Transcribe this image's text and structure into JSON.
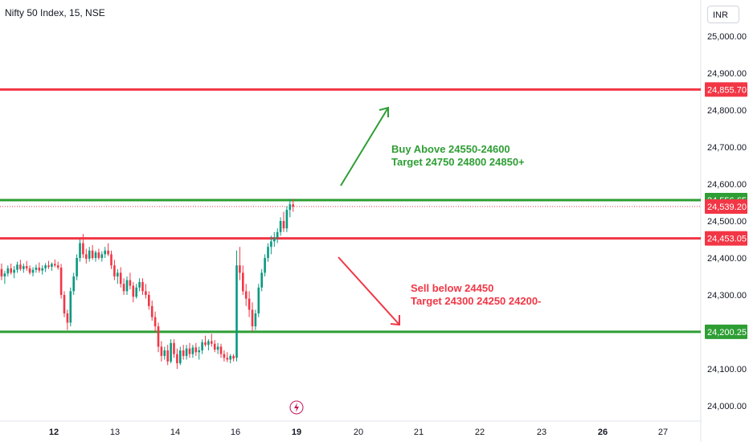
{
  "header": {
    "title": "Nifty 50 Index, 15, NSE",
    "currency": "INR"
  },
  "colors": {
    "up": "#089981",
    "down": "#f23645",
    "green_line": "#2e9e34",
    "red_line": "#f23645",
    "axis_text": "#131722"
  },
  "annotations": {
    "buy_line1": "Buy Above 24550-24600",
    "buy_line2": "Target 24750 24800 24850+",
    "sell_line1": "Sell below 24450",
    "sell_line2": "Target 24300 24250 24200-"
  },
  "chart_data": {
    "type": "candlestick",
    "ylim": [
      23985,
      25040
    ],
    "y_ticks": [
      "25,000.00",
      "24,900.00",
      "24,800.00",
      "24,700.00",
      "24,600.00",
      "24,500.00",
      "24,400.00",
      "24,300.00",
      "24,200.00",
      "24,100.00",
      "24,000.00"
    ],
    "x_ticks": [
      "12",
      "13",
      "14",
      "16",
      "19",
      "20",
      "21",
      "22",
      "23",
      "26",
      "27"
    ],
    "horizontal_levels": [
      {
        "value": 24855.7,
        "label": "24,855.70",
        "color": "red"
      },
      {
        "value": 24556.65,
        "label": "24,556.65",
        "color": "green"
      },
      {
        "value": 24539.2,
        "label": "24,539.20",
        "color": "red",
        "style": "dotted"
      },
      {
        "value": 24453.05,
        "label": "24,453.05",
        "color": "red"
      },
      {
        "value": 24200.25,
        "label": "24,200.25",
        "color": "green"
      }
    ],
    "series": [
      {
        "candles": [
          [
            24370,
            24385,
            24340,
            24350
          ],
          [
            24350,
            24365,
            24330,
            24358
          ],
          [
            24358,
            24380,
            24350,
            24372
          ],
          [
            24372,
            24385,
            24355,
            24360
          ],
          [
            24360,
            24378,
            24345,
            24368
          ],
          [
            24368,
            24390,
            24360,
            24382
          ],
          [
            24382,
            24395,
            24365,
            24370
          ],
          [
            24370,
            24385,
            24360,
            24378
          ],
          [
            24378,
            24392,
            24365,
            24372
          ],
          [
            24372,
            24380,
            24355,
            24360
          ],
          [
            24360,
            24375,
            24350,
            24368
          ],
          [
            24368,
            24382,
            24360,
            24374
          ],
          [
            24374,
            24388,
            24360,
            24366
          ],
          [
            24366,
            24380,
            24355,
            24372
          ],
          [
            24372,
            24386,
            24362,
            24380
          ],
          [
            24380,
            24392,
            24370,
            24376
          ],
          [
            24376,
            24388,
            24365,
            24384
          ],
          [
            24384,
            24396,
            24375,
            24380
          ],
          [
            24380,
            24390,
            24368,
            24374
          ],
          [
            24374,
            24384,
            24290,
            24300
          ],
          [
            24300,
            24310,
            24240,
            24250
          ],
          [
            24250,
            24260,
            24205,
            24225
          ],
          [
            24225,
            24320,
            24215,
            24310
          ],
          [
            24310,
            24360,
            24300,
            24350
          ],
          [
            24350,
            24410,
            24340,
            24400
          ],
          [
            24400,
            24450,
            24390,
            24440
          ],
          [
            24440,
            24465,
            24400,
            24410
          ],
          [
            24410,
            24425,
            24385,
            24398
          ],
          [
            24398,
            24430,
            24390,
            24420
          ],
          [
            24420,
            24435,
            24395,
            24400
          ],
          [
            24400,
            24420,
            24390,
            24415
          ],
          [
            24415,
            24425,
            24395,
            24400
          ],
          [
            24400,
            24418,
            24390,
            24410
          ],
          [
            24410,
            24430,
            24400,
            24420
          ],
          [
            24420,
            24440,
            24405,
            24410
          ],
          [
            24410,
            24420,
            24370,
            24380
          ],
          [
            24380,
            24395,
            24340,
            24350
          ],
          [
            24350,
            24370,
            24330,
            24360
          ],
          [
            24360,
            24375,
            24320,
            24330
          ],
          [
            24330,
            24345,
            24300,
            24310
          ],
          [
            24310,
            24350,
            24300,
            24340
          ],
          [
            24340,
            24360,
            24315,
            24325
          ],
          [
            24325,
            24335,
            24280,
            24295
          ],
          [
            24295,
            24330,
            24290,
            24320
          ],
          [
            24320,
            24345,
            24310,
            24335
          ],
          [
            24335,
            24345,
            24300,
            24310
          ],
          [
            24310,
            24330,
            24290,
            24300
          ],
          [
            24300,
            24310,
            24260,
            24270
          ],
          [
            24270,
            24285,
            24230,
            24240
          ],
          [
            24240,
            24255,
            24200,
            24215
          ],
          [
            24215,
            24225,
            24145,
            24160
          ],
          [
            24160,
            24175,
            24120,
            24135
          ],
          [
            24135,
            24160,
            24125,
            24150
          ],
          [
            24150,
            24165,
            24110,
            24120
          ],
          [
            24120,
            24180,
            24115,
            24170
          ],
          [
            24170,
            24180,
            24130,
            24140
          ],
          [
            24140,
            24155,
            24100,
            24115
          ],
          [
            24115,
            24160,
            24110,
            24150
          ],
          [
            24150,
            24165,
            24125,
            24135
          ],
          [
            24135,
            24165,
            24125,
            24155
          ],
          [
            24155,
            24170,
            24130,
            24140
          ],
          [
            24140,
            24165,
            24130,
            24158
          ],
          [
            24158,
            24170,
            24135,
            24145
          ],
          [
            24145,
            24160,
            24125,
            24150
          ],
          [
            24150,
            24180,
            24140,
            24172
          ],
          [
            24172,
            24190,
            24160,
            24165
          ],
          [
            24165,
            24180,
            24150,
            24175
          ],
          [
            24175,
            24195,
            24160,
            24168
          ],
          [
            24168,
            24178,
            24145,
            24152
          ],
          [
            24152,
            24170,
            24140,
            24160
          ],
          [
            24160,
            24168,
            24130,
            24140
          ],
          [
            24140,
            24150,
            24120,
            24130
          ],
          [
            24130,
            24145,
            24118,
            24125
          ],
          [
            24125,
            24140,
            24115,
            24135
          ],
          [
            24135,
            24140,
            24120,
            24128
          ],
          [
            24130,
            24420,
            24120,
            24380
          ],
          [
            24380,
            24430,
            24340,
            24360
          ],
          [
            24360,
            24380,
            24300,
            24310
          ],
          [
            24310,
            24330,
            24270,
            24290
          ],
          [
            24290,
            24310,
            24240,
            24260
          ],
          [
            24260,
            24280,
            24200,
            24215
          ],
          [
            24215,
            24260,
            24205,
            24250
          ],
          [
            24250,
            24330,
            24240,
            24320
          ],
          [
            24320,
            24370,
            24310,
            24360
          ],
          [
            24360,
            24410,
            24350,
            24400
          ],
          [
            24400,
            24440,
            24390,
            24430
          ],
          [
            24430,
            24460,
            24410,
            24445
          ],
          [
            24445,
            24470,
            24430,
            24455
          ],
          [
            24455,
            24480,
            24440,
            24470
          ],
          [
            24470,
            24510,
            24460,
            24500
          ],
          [
            24500,
            24525,
            24470,
            24480
          ],
          [
            24480,
            24540,
            24470,
            24530
          ],
          [
            24530,
            24560,
            24510,
            24545
          ],
          [
            24545,
            24560,
            24525,
            24539
          ]
        ]
      }
    ]
  }
}
